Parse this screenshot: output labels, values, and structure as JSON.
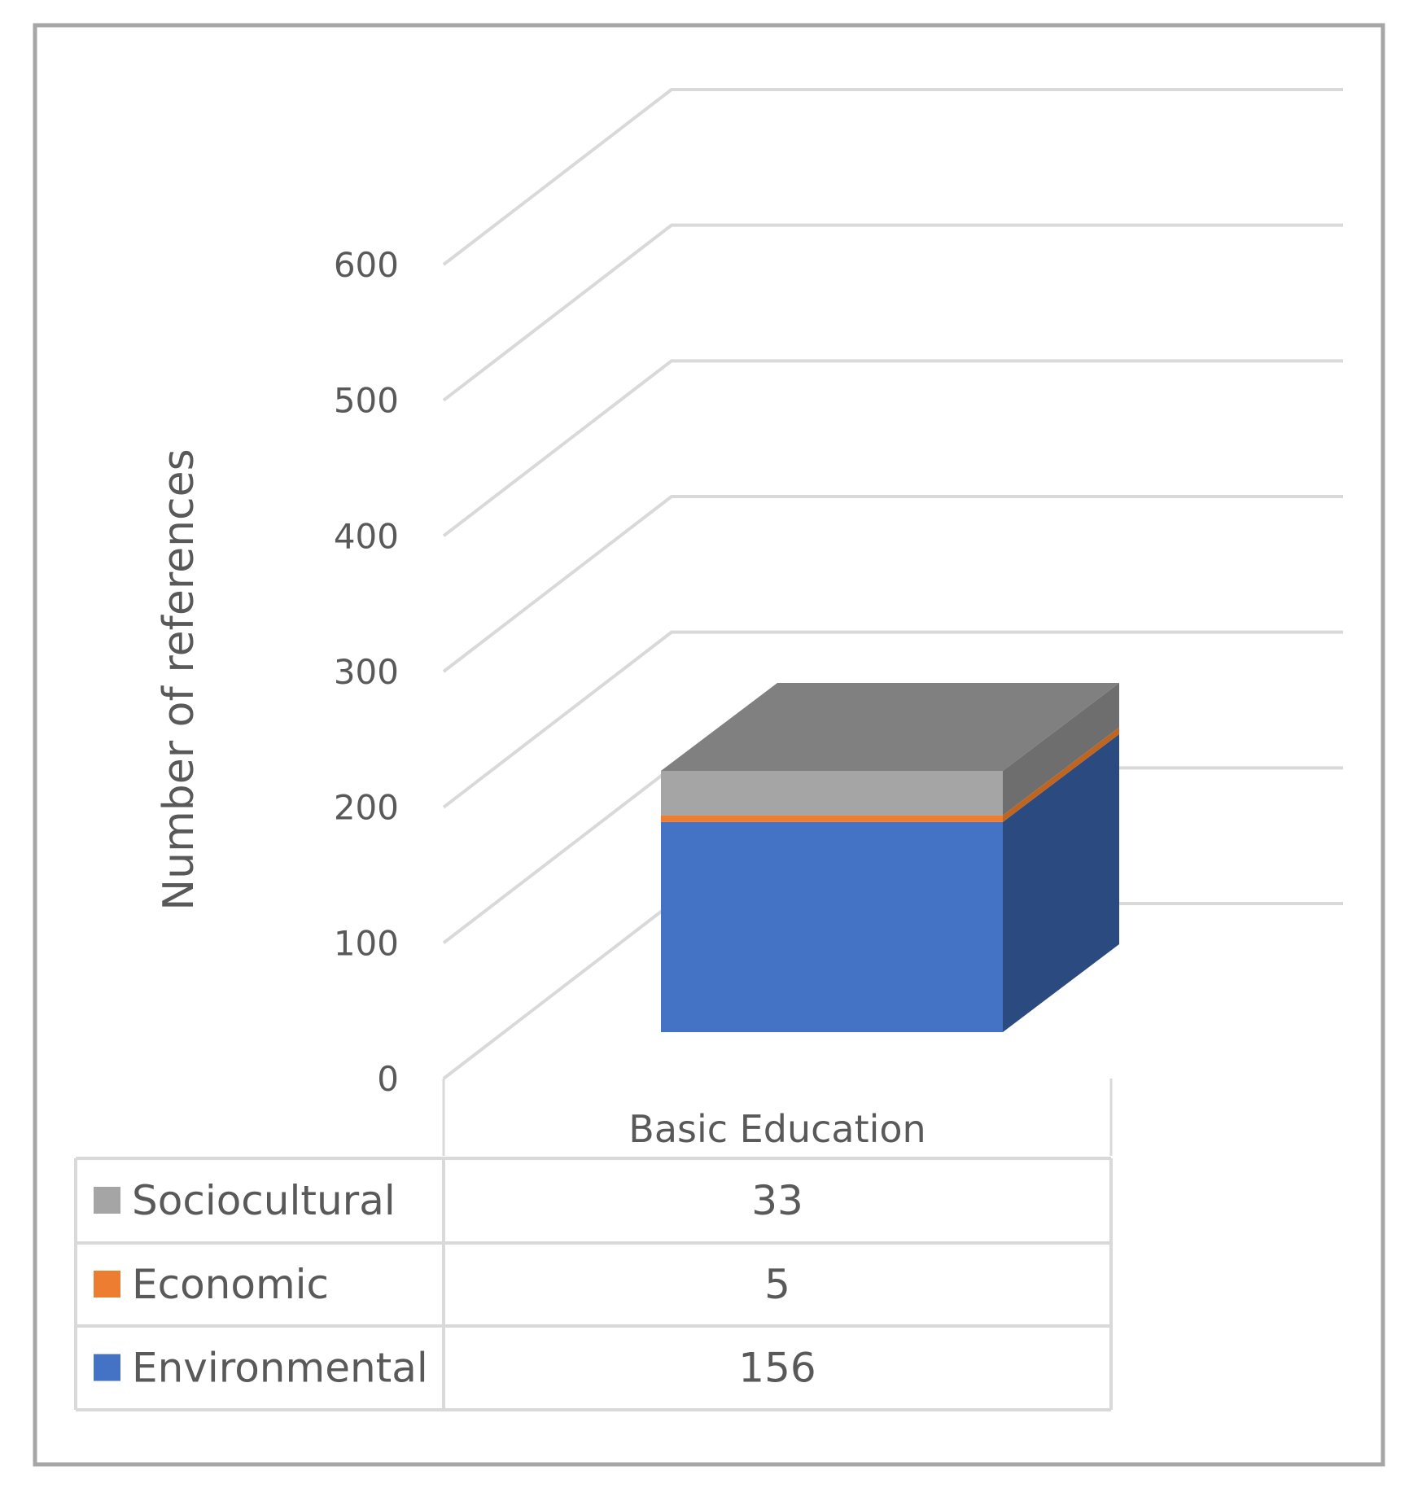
{
  "chart_data": {
    "type": "bar",
    "stacked": true,
    "three_d": true,
    "title": "",
    "xlabel": "",
    "ylabel": "Number of references",
    "ylim": [
      0,
      600
    ],
    "yticks": [
      "0",
      "100",
      "200",
      "300",
      "400",
      "500",
      "600"
    ],
    "grid": true,
    "categories": [
      "Basic Education"
    ],
    "series": [
      {
        "name": "Environmental",
        "values": [
          156
        ],
        "color": "#4472C4",
        "side_color": "#2A4A80",
        "top_color": "#5B86D0"
      },
      {
        "name": "Economic",
        "values": [
          5
        ],
        "color": "#ED7D31",
        "side_color": "#C0651F",
        "top_color": "#F08A42"
      },
      {
        "name": "Sociocultural",
        "values": [
          33
        ],
        "color": "#A5A5A5",
        "side_color": "#6E6E6E",
        "top_color": "#808080"
      }
    ],
    "data_table": {
      "rows": [
        {
          "series": "Sociocultural",
          "value": "33",
          "swatch": "#A5A5A5"
        },
        {
          "series": "Economic",
          "value": "5",
          "swatch": "#ED7D31"
        },
        {
          "series": "Environmental",
          "value": "156",
          "swatch": "#4472C4"
        }
      ]
    }
  },
  "colors": {
    "frame": "#A6A6A6",
    "gridline": "#D9D9D9",
    "text": "#595959",
    "table_border": "#D9D9D9"
  }
}
